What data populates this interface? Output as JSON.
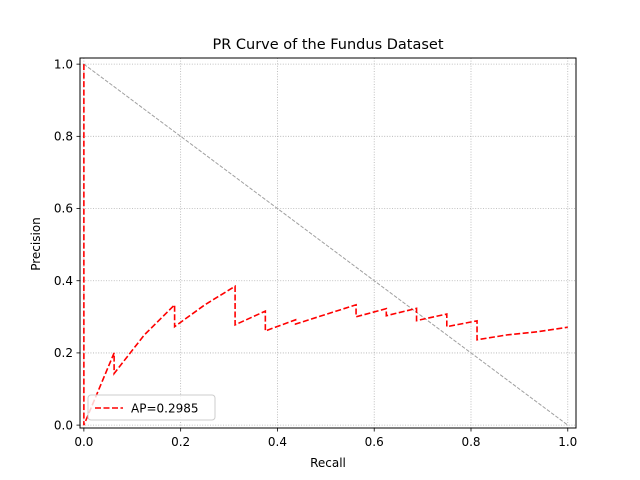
{
  "chart_data": {
    "type": "line",
    "title": "PR Curve of the Fundus Dataset",
    "xlabel": "Recall",
    "ylabel": "Precision",
    "xlim": [
      -0.008,
      1.017
    ],
    "ylim": [
      -0.008,
      1.017
    ],
    "xticks": [
      0.0,
      0.2,
      0.4,
      0.6,
      0.8,
      1.0
    ],
    "xtick_labels": [
      "0.0",
      "0.2",
      "0.4",
      "0.6",
      "0.8",
      "1.0"
    ],
    "yticks": [
      0.0,
      0.2,
      0.4,
      0.6,
      0.8,
      1.0
    ],
    "ytick_labels": [
      "0.0",
      "0.2",
      "0.4",
      "0.6",
      "0.8",
      "1.0"
    ],
    "grid": true,
    "legend_position": "lower-left",
    "series": [
      {
        "name": "AP=0.2985",
        "color": "#ff0000",
        "style": "dashed",
        "x": [
          0.0,
          0.0,
          0.0,
          0.0625,
          0.0625,
          0.125,
          0.1875,
          0.1875,
          0.25,
          0.3125,
          0.3125,
          0.375,
          0.375,
          0.4375,
          0.4375,
          0.5625,
          0.5625,
          0.625,
          0.625,
          0.6875,
          0.6875,
          0.75,
          0.75,
          0.8125,
          0.8125,
          0.875,
          0.9375,
          1.0
        ],
        "y": [
          1.0,
          0.0,
          0.0,
          0.2,
          0.1429,
          0.25,
          0.3333,
          0.2727,
          0.3333,
          0.3846,
          0.2778,
          0.3158,
          0.2609,
          0.2917,
          0.28,
          0.3333,
          0.3,
          0.3226,
          0.303,
          0.3235,
          0.2895,
          0.3077,
          0.2727,
          0.2889,
          0.2364,
          0.25,
          0.2586,
          0.2712
        ]
      }
    ],
    "reference_line": {
      "x": [
        0.0,
        1.0
      ],
      "y": [
        1.0,
        0.0
      ],
      "color": "#a0a0a0",
      "style": "dashed"
    }
  }
}
